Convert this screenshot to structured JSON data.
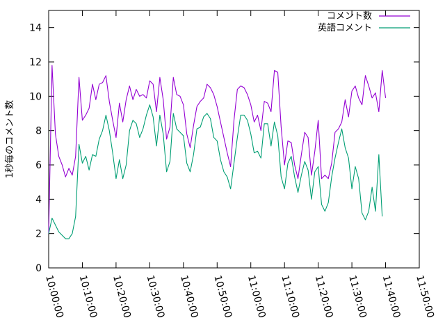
{
  "chart_data": {
    "type": "line",
    "ylabel": "1秒毎のコメント数",
    "xlabel": "",
    "title": "",
    "ylim": [
      0,
      15
    ],
    "xlim": [
      "10:00:00",
      "11:50:00"
    ],
    "yticks": [
      0,
      2,
      4,
      6,
      8,
      10,
      12,
      14
    ],
    "xticks": [
      "10:00:00",
      "10:10:00",
      "10:20:00",
      "10:30:00",
      "10:40:00",
      "10:50:00",
      "11:00:00",
      "11:10:00",
      "11:20:00",
      "11:30:00",
      "11:40:00",
      "11:50:00"
    ],
    "grid": false,
    "legend_position": "top-right",
    "x_interval_seconds": 60,
    "x_start": "10:00:00",
    "series": [
      {
        "name": "コメント数",
        "color": "#9400d3",
        "values": [
          2.0,
          11.8,
          7.8,
          6.5,
          6.0,
          5.3,
          5.8,
          5.4,
          6.5,
          11.1,
          8.6,
          8.9,
          9.3,
          10.7,
          9.8,
          10.7,
          10.8,
          11.2,
          9.7,
          8.6,
          7.6,
          9.6,
          8.5,
          9.8,
          10.6,
          9.8,
          10.4,
          10.0,
          10.1,
          9.9,
          10.9,
          10.7,
          9.1,
          11.1,
          9.8,
          7.5,
          8.2,
          11.1,
          10.1,
          10.0,
          9.5,
          7.8,
          7.0,
          8.3,
          9.4,
          9.7,
          9.9,
          10.7,
          10.5,
          10.1,
          9.4,
          8.5,
          7.6,
          6.7,
          5.9,
          8.6,
          10.4,
          10.6,
          10.5,
          10.1,
          9.5,
          8.5,
          8.9,
          8.0,
          9.7,
          9.6,
          9.1,
          11.5,
          11.4,
          8.2,
          6.0,
          7.4,
          7.3,
          6.0,
          5.2,
          6.6,
          7.9,
          7.6,
          5.4,
          6.8,
          8.6,
          5.2,
          5.4,
          5.2,
          6.1,
          7.9,
          8.1,
          8.5,
          9.8,
          8.8,
          10.3,
          10.6,
          9.9,
          9.5,
          11.2,
          10.6,
          9.9,
          10.2,
          9.1,
          11.5,
          9.9
        ]
      },
      {
        "name": "英語コメント",
        "color": "#009e73",
        "values": [
          2.0,
          2.9,
          2.5,
          2.1,
          1.9,
          1.7,
          1.7,
          2.0,
          3.0,
          7.2,
          6.1,
          6.5,
          5.7,
          6.6,
          6.5,
          7.5,
          8.0,
          8.9,
          8.0,
          6.7,
          5.2,
          6.3,
          5.2,
          6.0,
          8.0,
          8.6,
          8.4,
          7.6,
          8.1,
          8.9,
          9.5,
          8.8,
          7.1,
          8.9,
          7.8,
          5.6,
          6.2,
          9.0,
          8.1,
          7.9,
          7.7,
          6.1,
          5.6,
          6.6,
          8.1,
          8.2,
          8.8,
          9.0,
          8.7,
          7.6,
          7.4,
          6.3,
          5.6,
          5.3,
          4.6,
          6.1,
          7.6,
          8.9,
          8.9,
          8.6,
          7.8,
          6.7,
          6.8,
          6.4,
          8.4,
          8.4,
          7.1,
          8.5,
          7.7,
          5.3,
          4.6,
          6.1,
          6.5,
          5.3,
          4.4,
          5.4,
          6.2,
          5.7,
          4.0,
          5.6,
          5.9,
          3.7,
          3.3,
          3.8,
          5.3,
          6.4,
          7.3,
          8.1,
          7.0,
          6.4,
          4.6,
          5.9,
          5.2,
          3.2,
          2.8,
          3.3,
          4.7,
          3.3,
          6.6,
          3.0
        ]
      }
    ]
  }
}
